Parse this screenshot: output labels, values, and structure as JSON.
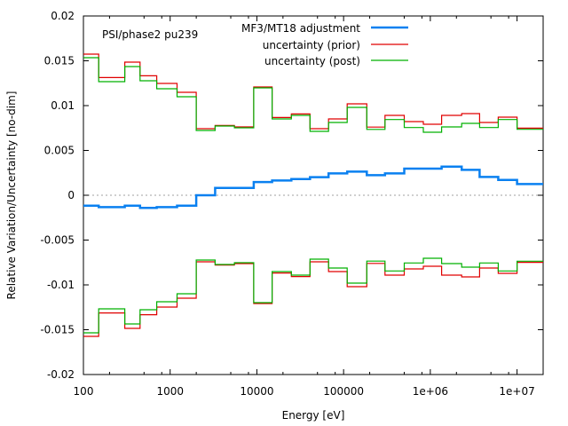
{
  "chart_data": {
    "type": "line",
    "title": "PSI/phase2 pu239",
    "xlabel": "Energy [eV]",
    "ylabel": "Relative Variation/Uncertainty [no-dim]",
    "xscale": "log",
    "xlim": [
      100,
      20000000
    ],
    "ylim": [
      -0.02,
      0.02
    ],
    "grid": false,
    "zero_line": true,
    "legend_position": "top-right",
    "x_ticks": [
      {
        "value": 100,
        "label": "100"
      },
      {
        "value": 1000,
        "label": "1000"
      },
      {
        "value": 10000,
        "label": "10000"
      },
      {
        "value": 100000,
        "label": "100000"
      },
      {
        "value": 1000000,
        "label": "1e+06"
      },
      {
        "value": 10000000,
        "label": "1e+07"
      }
    ],
    "y_ticks": [
      {
        "value": 0.02,
        "label": "0.02"
      },
      {
        "value": 0.015,
        "label": "0.015"
      },
      {
        "value": 0.01,
        "label": "0.01"
      },
      {
        "value": 0.005,
        "label": "0.005"
      },
      {
        "value": 0,
        "label": "0"
      },
      {
        "value": -0.005,
        "label": "-0.005"
      },
      {
        "value": -0.01,
        "label": "-0.01"
      },
      {
        "value": -0.015,
        "label": "-0.015"
      },
      {
        "value": -0.02,
        "label": "-0.02"
      }
    ],
    "bin_edges": [
      100,
      150,
      300,
      450,
      700,
      1200,
      2000,
      3300,
      5500,
      9200,
      15000,
      25000,
      41000,
      67000,
      110000,
      185000,
      300000,
      500000,
      830000,
      1350000,
      2300000,
      3700000,
      6070000,
      10000000,
      20000000
    ],
    "series": [
      {
        "name": "MF3/MT18 adjustment",
        "color": "#0a80f0",
        "style": "step",
        "mirror": false,
        "values": [
          -0.00116,
          -0.00133,
          -0.00116,
          -0.00142,
          -0.00133,
          -0.00116,
          0.0,
          0.00082,
          0.00082,
          0.00148,
          0.00164,
          0.00181,
          0.00202,
          0.00244,
          0.00263,
          0.00224,
          0.00244,
          0.00297,
          0.00297,
          0.0032,
          0.00283,
          0.00204,
          0.00171,
          0.00125
        ]
      },
      {
        "name": "uncertainty (prior)",
        "color": "#e00000",
        "style": "step",
        "mirror": true,
        "values": [
          0.01574,
          0.01313,
          0.01485,
          0.01333,
          0.01248,
          0.01149,
          0.00743,
          0.00778,
          0.00762,
          0.01208,
          0.00867,
          0.00907,
          0.00743,
          0.00851,
          0.0102,
          0.0076,
          0.00891,
          0.00822,
          0.00792,
          0.00891,
          0.00911,
          0.00812,
          0.00871,
          0.00749
        ]
      },
      {
        "name": "uncertainty (post)",
        "color": "#00b000",
        "style": "step",
        "mirror": true,
        "values": [
          0.01535,
          0.01267,
          0.01436,
          0.01277,
          0.01188,
          0.01099,
          0.00723,
          0.00772,
          0.00752,
          0.01198,
          0.00851,
          0.00891,
          0.00713,
          0.00812,
          0.0098,
          0.00735,
          0.00845,
          0.00755,
          0.00703,
          0.00762,
          0.00802,
          0.00755,
          0.00845,
          0.00736
        ]
      }
    ]
  }
}
